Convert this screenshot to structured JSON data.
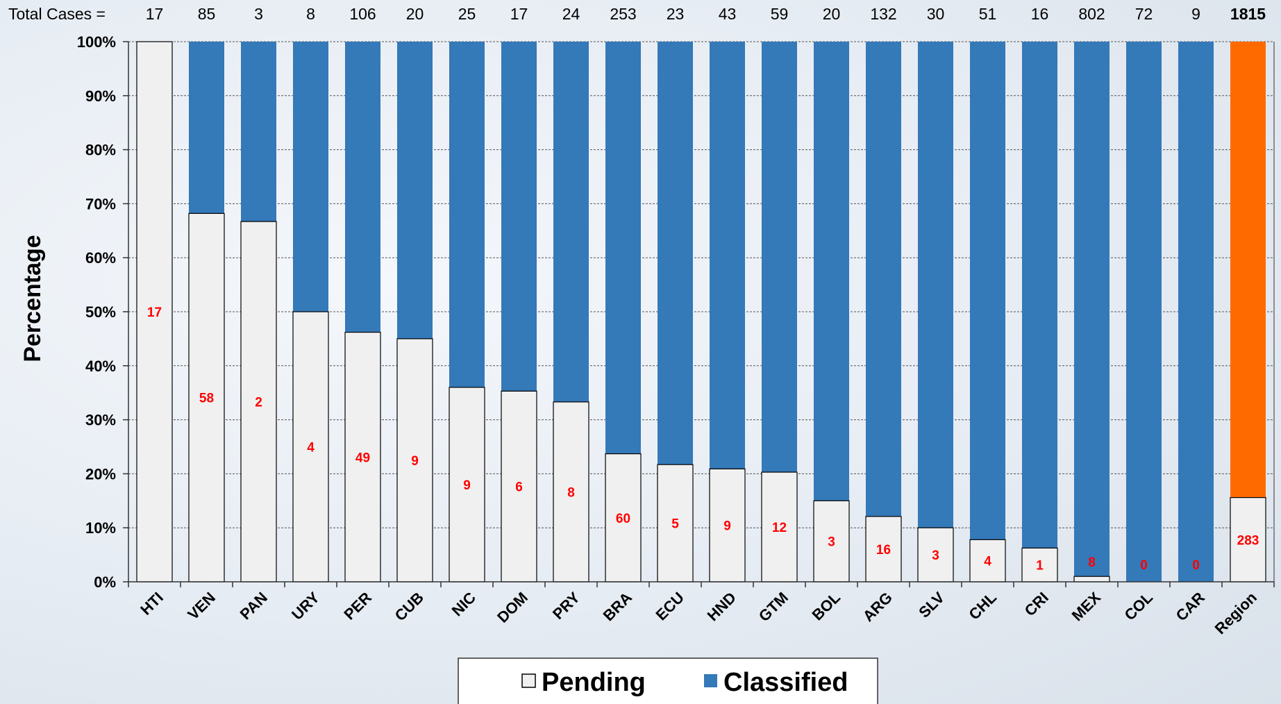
{
  "chart_data": {
    "type": "bar",
    "stacked": true,
    "normalized": true,
    "ylabel": "Percentage",
    "ylim": [
      0,
      100
    ],
    "yticks": [
      "0%",
      "10%",
      "20%",
      "30%",
      "40%",
      "50%",
      "60%",
      "70%",
      "80%",
      "90%",
      "100%"
    ],
    "grid": true,
    "totals_label": "Total Cases =",
    "categories": [
      "HTI",
      "VEN",
      "PAN",
      "URY",
      "PER",
      "CUB",
      "NIC",
      "DOM",
      "PRY",
      "BRA",
      "ECU",
      "HND",
      "GTM",
      "BOL",
      "ARG",
      "SLV",
      "CHL",
      "CRI",
      "MEX",
      "COL",
      "CAR",
      "Region"
    ],
    "totals": [
      "17",
      "85",
      "3",
      "8",
      "106",
      "20",
      "25",
      "17",
      "24",
      "253",
      "23",
      "43",
      "59",
      "20",
      "132",
      "30",
      "51",
      "16",
      "802",
      "72",
      "9",
      "1815"
    ],
    "highlight_total_index": 21,
    "series": [
      {
        "name": "Pending",
        "color": "#f0f0f0",
        "values": [
          100,
          68.2,
          66.7,
          50.0,
          46.2,
          45.0,
          36.0,
          35.3,
          33.3,
          23.7,
          21.7,
          20.9,
          20.3,
          15.0,
          12.1,
          10.0,
          7.8,
          6.25,
          1.0,
          0,
          0,
          15.6
        ],
        "labels": [
          "17",
          "58",
          "2",
          "4",
          "49",
          "9",
          "9",
          "6",
          "8",
          "60",
          "5",
          "9",
          "12",
          "3",
          "16",
          "3",
          "4",
          "1",
          "8",
          "0",
          "0",
          "283"
        ]
      },
      {
        "name": "Classified",
        "color": "#3479b8",
        "region_color": "#ff6a00",
        "values": [
          0,
          31.8,
          33.3,
          50.0,
          53.8,
          55.0,
          64.0,
          64.7,
          66.7,
          76.3,
          78.3,
          79.1,
          79.7,
          85.0,
          87.9,
          90.0,
          92.2,
          93.75,
          99.0,
          100,
          100,
          84.4
        ]
      }
    ],
    "legend": {
      "position": "bottom",
      "items": [
        {
          "label": "Pending",
          "color": "#f0f0f0"
        },
        {
          "label": "Classified",
          "color": "#3479b8"
        }
      ]
    }
  }
}
